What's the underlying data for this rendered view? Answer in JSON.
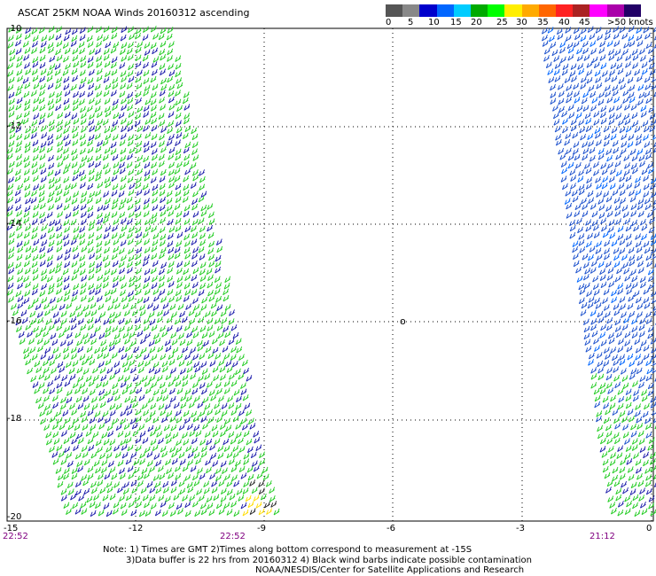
{
  "title": "ASCAT 25KM NOAA Winds 20160312 ascending",
  "legend": {
    "colors": [
      "#555555",
      "#888888",
      "#0000cc",
      "#0066ff",
      "#00ccff",
      "#00aa00",
      "#00ff00",
      "#ffee00",
      "#ffaa00",
      "#ff6600",
      "#ff2222",
      "#aa2222",
      "#ff00ff",
      "#aa00aa",
      "#220066"
    ],
    "labels": [
      "0",
      "5",
      "10",
      "15",
      "20",
      "25",
      "30",
      "35",
      "40",
      "45",
      ">50 knots"
    ]
  },
  "axes": {
    "y_labels": [
      "-10",
      "-12",
      "-14",
      "-16",
      "-18",
      "-20"
    ],
    "x_labels": [
      "-15",
      "-12",
      "-9",
      "-6",
      "-3",
      "0"
    ]
  },
  "times": [
    "22:52",
    "22:52",
    "21:12"
  ],
  "notes": [
    "Note: 1) Times are GMT 2)Times along bottom correspond to measurement at -15S",
    "3)Data buffer is 22 hrs from 20160312 4) Black wind barbs indicate possible contamination",
    "NOAA/NESDIS/Center for Satellite Applications and Research"
  ],
  "marker": "o"
}
